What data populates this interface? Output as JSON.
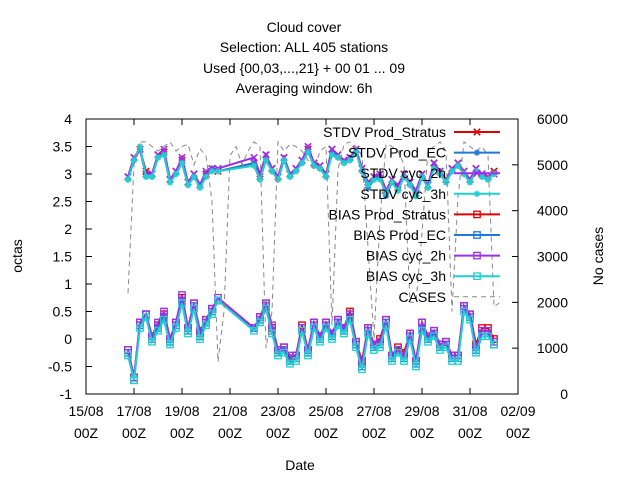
{
  "chart_data": {
    "type": "line",
    "title_lines": [
      "Cloud cover",
      "Selection: ALL    405 stations",
      "Used {00,03,...,21} + 00 01 ... 09",
      "Averaging window:  6h"
    ],
    "xlabel": "Date",
    "ylabel": "octas",
    "y2label": "No cases",
    "xlim": [
      0,
      18
    ],
    "ylim": [
      -1,
      4
    ],
    "y2lim": [
      0,
      6000
    ],
    "x_ticks": [
      {
        "x": 0,
        "line1": "15/08",
        "line2": "00Z"
      },
      {
        "x": 2,
        "line1": "17/08",
        "line2": "00Z"
      },
      {
        "x": 4,
        "line1": "19/08",
        "line2": "00Z"
      },
      {
        "x": 6,
        "line1": "21/08",
        "line2": "00Z"
      },
      {
        "x": 8,
        "line1": "23/08",
        "line2": "00Z"
      },
      {
        "x": 10,
        "line1": "25/08",
        "line2": "00Z"
      },
      {
        "x": 12,
        "line1": "27/08",
        "line2": "00Z"
      },
      {
        "x": 14,
        "line1": "29/08",
        "line2": "00Z"
      },
      {
        "x": 16,
        "line1": "31/08",
        "line2": "00Z"
      },
      {
        "x": 18,
        "line1": "02/09",
        "line2": "00Z"
      }
    ],
    "y_ticks": [
      "-1",
      "-0.5",
      "0",
      "0.5",
      "1",
      "1.5",
      "2",
      "2.5",
      "3",
      "3.5",
      "4"
    ],
    "y_tick_values": [
      -1,
      -0.5,
      0,
      0.5,
      1,
      1.5,
      2,
      2.5,
      3,
      3.5,
      4
    ],
    "y2_ticks": [
      "0",
      "1000",
      "2000",
      "3000",
      "4000",
      "5000",
      "6000"
    ],
    "y2_tick_values": [
      0,
      1000,
      2000,
      3000,
      4000,
      5000,
      6000
    ],
    "legend_position": "top-right",
    "x": [
      1.75,
      2.0,
      2.25,
      2.5,
      2.75,
      3.0,
      3.25,
      3.5,
      3.75,
      4.0,
      4.25,
      4.5,
      4.75,
      5.0,
      5.25,
      5.5,
      7.0,
      7.25,
      7.5,
      7.75,
      8.0,
      8.25,
      8.5,
      8.75,
      9.0,
      9.25,
      9.5,
      9.75,
      10.0,
      10.25,
      10.5,
      10.75,
      11.0,
      11.25,
      11.5,
      11.75,
      12.0,
      12.25,
      12.5,
      12.75,
      13.0,
      13.25,
      13.5,
      13.75,
      14.0,
      14.25,
      14.5,
      14.75,
      15.0,
      15.25,
      15.5,
      15.75,
      16.0,
      16.25,
      16.5,
      16.75,
      17.0
    ],
    "series": [
      {
        "name": "STDV Prod_Stratus",
        "color": "#dd0000",
        "marker": "x",
        "axis": "y",
        "values": [
          2.95,
          3.3,
          3.45,
          3.05,
          3.0,
          3.35,
          3.4,
          2.9,
          3.05,
          3.25,
          2.85,
          3.0,
          2.8,
          3.0,
          3.1,
          3.05,
          3.2,
          2.95,
          3.35,
          3.1,
          2.95,
          3.3,
          3.0,
          3.1,
          3.25,
          3.45,
          3.2,
          3.15,
          3.0,
          3.45,
          3.35,
          3.25,
          3.3,
          3.45,
          3.1,
          2.85,
          2.95,
          3.0,
          2.7,
          2.9,
          2.75,
          3.0,
          2.85,
          2.65,
          3.0,
          2.8,
          3.2,
          3.05,
          2.9,
          3.1,
          3.2,
          3.05,
          2.9,
          3.1,
          3.0,
          2.95,
          3.05
        ]
      },
      {
        "name": "STDV Prod_EC",
        "color": "#1f78d8",
        "marker": "*",
        "axis": "y",
        "values": [
          2.9,
          3.25,
          3.45,
          2.95,
          2.95,
          3.3,
          3.35,
          2.85,
          3.0,
          3.2,
          2.8,
          2.95,
          2.8,
          2.95,
          3.1,
          3.05,
          3.2,
          2.9,
          3.3,
          3.05,
          2.9,
          3.25,
          2.95,
          3.05,
          3.2,
          3.4,
          3.15,
          3.1,
          2.95,
          3.4,
          3.3,
          3.2,
          3.25,
          3.4,
          3.05,
          2.75,
          2.9,
          2.95,
          2.6,
          2.85,
          2.7,
          2.95,
          2.8,
          2.6,
          2.95,
          2.75,
          3.15,
          3.0,
          2.85,
          3.05,
          3.15,
          3.0,
          2.85,
          3.05,
          2.95,
          2.9,
          3.0
        ]
      },
      {
        "name": "STDV cyc_2h",
        "color": "#9b30e8",
        "marker": "x",
        "axis": "y",
        "values": [
          2.95,
          3.3,
          3.45,
          3.0,
          3.0,
          3.35,
          3.45,
          2.9,
          3.05,
          3.3,
          2.85,
          3.0,
          2.8,
          3.05,
          3.1,
          3.1,
          3.3,
          3.0,
          3.35,
          3.1,
          2.95,
          3.3,
          3.0,
          3.1,
          3.25,
          3.5,
          3.2,
          3.15,
          3.0,
          3.45,
          3.35,
          3.25,
          3.3,
          3.45,
          3.1,
          2.85,
          2.95,
          3.0,
          2.7,
          2.9,
          2.8,
          3.0,
          2.85,
          2.7,
          3.0,
          2.8,
          3.2,
          3.05,
          2.9,
          3.1,
          3.2,
          3.05,
          2.9,
          3.1,
          3.0,
          2.95,
          3.0
        ]
      },
      {
        "name": "STDV cyc_3h",
        "color": "#1fd0d0",
        "marker": "*",
        "axis": "y",
        "values": [
          2.9,
          3.25,
          3.5,
          2.95,
          2.95,
          3.3,
          3.35,
          2.85,
          3.0,
          3.2,
          2.8,
          2.95,
          2.75,
          2.95,
          3.05,
          3.05,
          3.15,
          2.9,
          3.25,
          3.05,
          2.9,
          3.25,
          2.95,
          3.05,
          3.2,
          3.4,
          3.15,
          3.1,
          2.95,
          3.35,
          3.3,
          3.2,
          3.25,
          3.4,
          3.05,
          2.8,
          2.9,
          2.9,
          2.65,
          2.85,
          2.7,
          2.95,
          2.8,
          2.6,
          2.95,
          2.75,
          3.1,
          3.0,
          2.85,
          3.05,
          3.15,
          3.0,
          2.85,
          3.05,
          2.95,
          2.9,
          3.0
        ]
      },
      {
        "name": "BIAS Prod_Stratus",
        "color": "#dd0000",
        "marker": "square",
        "axis": "y",
        "values": [
          -0.2,
          -0.7,
          0.3,
          0.45,
          0.05,
          0.25,
          0.45,
          0.0,
          0.3,
          0.75,
          0.2,
          0.65,
          0.1,
          0.35,
          0.55,
          0.7,
          0.2,
          0.4,
          0.65,
          0.2,
          -0.2,
          -0.15,
          -0.35,
          -0.3,
          0.25,
          -0.2,
          0.3,
          0.05,
          0.3,
          0.1,
          0.35,
          0.2,
          0.5,
          -0.05,
          -0.4,
          0.2,
          -0.1,
          0.0,
          0.35,
          -0.3,
          -0.15,
          -0.25,
          0.1,
          -0.4,
          0.3,
          0.05,
          0.15,
          -0.1,
          -0.05,
          -0.3,
          -0.3,
          0.6,
          0.45,
          -0.1,
          0.2,
          0.2,
          0.0
        ]
      },
      {
        "name": "BIAS Prod_EC",
        "color": "#1f78d8",
        "marker": "square",
        "axis": "y",
        "values": [
          -0.25,
          -0.75,
          0.25,
          0.45,
          0.0,
          0.2,
          0.4,
          -0.05,
          0.25,
          0.7,
          0.15,
          0.6,
          0.05,
          0.3,
          0.5,
          0.7,
          0.2,
          0.35,
          0.6,
          0.15,
          -0.25,
          -0.2,
          -0.4,
          -0.35,
          0.2,
          -0.25,
          0.25,
          0.0,
          0.25,
          0.05,
          0.3,
          0.15,
          0.4,
          -0.1,
          -0.5,
          0.15,
          -0.15,
          -0.1,
          0.3,
          -0.35,
          -0.2,
          -0.35,
          0.05,
          -0.45,
          0.2,
          0.0,
          0.1,
          -0.15,
          -0.1,
          -0.35,
          -0.35,
          0.55,
          0.4,
          -0.2,
          0.1,
          0.1,
          -0.1
        ]
      },
      {
        "name": "BIAS cyc_2h",
        "color": "#9b30e8",
        "marker": "square",
        "axis": "y",
        "values": [
          -0.2,
          -0.7,
          0.3,
          0.45,
          0.05,
          0.3,
          0.5,
          0.0,
          0.3,
          0.8,
          0.2,
          0.65,
          0.15,
          0.35,
          0.55,
          0.75,
          0.2,
          0.4,
          0.65,
          0.25,
          -0.2,
          -0.15,
          -0.3,
          -0.3,
          0.2,
          -0.2,
          0.3,
          0.05,
          0.3,
          0.1,
          0.35,
          0.2,
          0.45,
          -0.05,
          -0.45,
          0.2,
          -0.1,
          -0.05,
          0.35,
          -0.3,
          -0.2,
          -0.3,
          0.1,
          -0.4,
          0.3,
          0.05,
          0.15,
          -0.1,
          -0.05,
          -0.3,
          -0.3,
          0.6,
          0.45,
          -0.15,
          0.15,
          0.15,
          -0.05
        ]
      },
      {
        "name": "BIAS cyc_3h",
        "color": "#1fd0d0",
        "marker": "square",
        "axis": "y",
        "values": [
          -0.3,
          -0.75,
          0.2,
          0.4,
          -0.05,
          0.15,
          0.35,
          -0.1,
          0.2,
          0.65,
          0.1,
          0.55,
          0.0,
          0.25,
          0.45,
          0.7,
          0.15,
          0.3,
          0.55,
          0.1,
          -0.3,
          -0.25,
          -0.45,
          -0.4,
          0.15,
          -0.3,
          0.2,
          -0.05,
          0.2,
          0.0,
          0.25,
          0.1,
          0.35,
          -0.15,
          -0.55,
          0.1,
          -0.2,
          -0.15,
          0.25,
          -0.4,
          -0.25,
          -0.4,
          0.0,
          -0.5,
          0.15,
          -0.05,
          0.05,
          -0.2,
          -0.15,
          -0.4,
          -0.4,
          0.5,
          0.35,
          -0.25,
          0.05,
          0.05,
          -0.1
        ]
      },
      {
        "name": "CASES",
        "color": "#888888",
        "marker": "none",
        "dashed": true,
        "axis": "y2",
        "x": [
          1.75,
          2.0,
          2.25,
          2.5,
          2.75,
          3.0,
          3.25,
          3.5,
          3.75,
          4.0,
          4.25,
          4.5,
          4.75,
          5.0,
          5.25,
          5.5,
          5.75,
          6.0,
          6.25,
          6.5,
          6.75,
          7.0,
          7.25,
          7.5,
          7.75,
          8.0,
          8.25,
          8.5,
          8.75,
          9.0,
          9.25,
          9.5,
          9.75,
          10.0,
          10.25,
          10.5,
          10.75,
          11.0,
          11.25,
          11.5,
          11.75,
          12.0,
          12.25,
          12.5,
          12.75,
          13.0,
          13.25,
          13.5,
          13.75,
          14.0,
          14.25,
          14.5,
          14.75,
          15.0,
          15.25,
          15.5,
          15.75,
          16.0,
          16.25,
          16.5,
          16.75,
          17.0,
          17.25
        ],
        "values": [
          2200,
          5000,
          5500,
          5500,
          5400,
          5300,
          5400,
          5500,
          5300,
          5400,
          5450,
          5000,
          5350,
          5200,
          4200,
          700,
          1800,
          5200,
          5400,
          5000,
          5300,
          5500,
          5400,
          1000,
          1800,
          5500,
          5300,
          5450,
          5400,
          5300,
          5100,
          4900,
          5300,
          5400,
          1500,
          4900,
          5450,
          5500,
          5400,
          5200,
          3200,
          1200,
          3800,
          5450,
          5400,
          5300,
          5000,
          2000,
          2000,
          3500,
          5300,
          5400,
          5500,
          5300,
          1800,
          4300,
          5500,
          5400,
          5300,
          5400,
          5200,
          1900,
          2000
        ]
      }
    ]
  }
}
